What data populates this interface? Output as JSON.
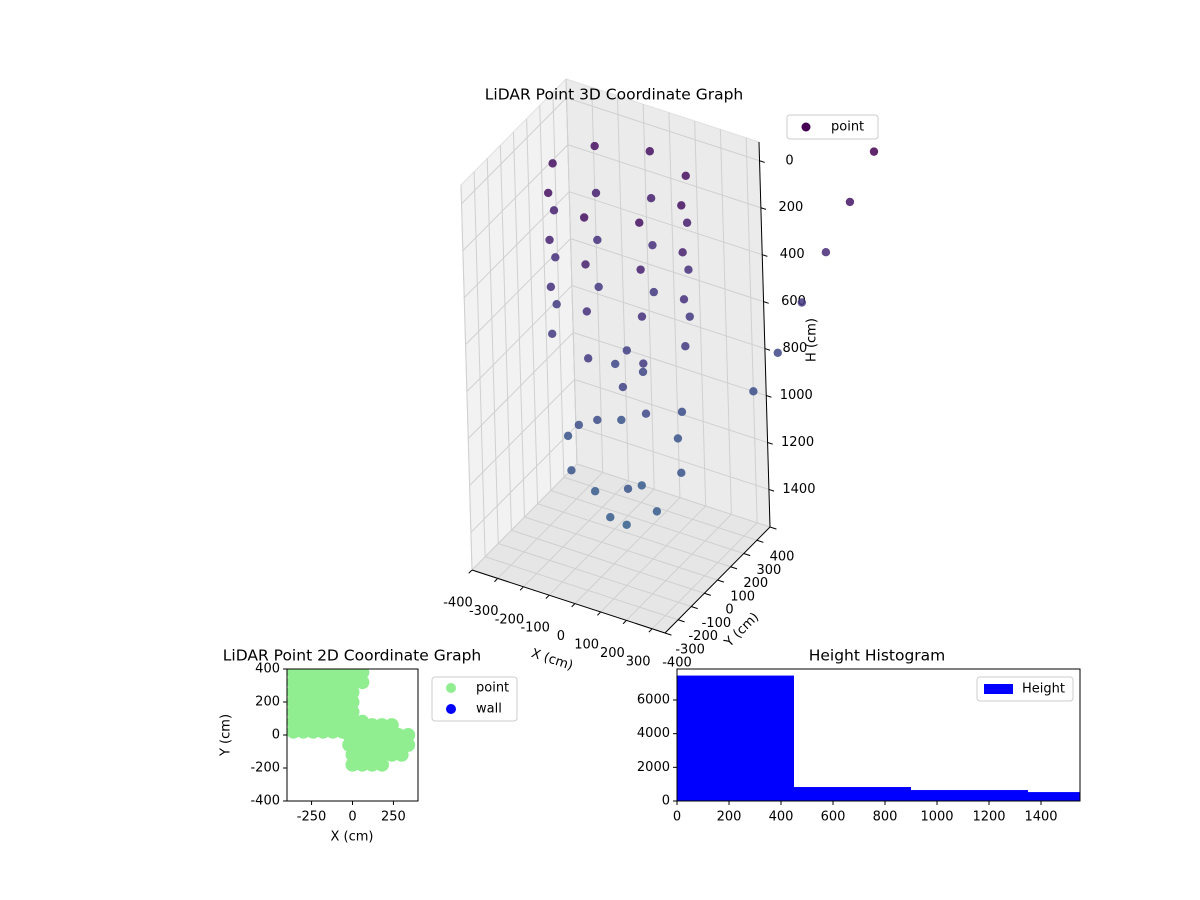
{
  "chart_data": [
    {
      "type": "scatter3d",
      "title": "LiDAR Point 3D Coordinate Graph",
      "xlabel": "X (cm)",
      "ylabel": "Y (cm)",
      "zlabel": "H (cm)",
      "xlim": [
        -400,
        350
      ],
      "ylim": [
        -400,
        400
      ],
      "zlim": [
        1560,
        -80
      ],
      "xticks": [
        -400,
        -300,
        -200,
        -100,
        0,
        100,
        200,
        300
      ],
      "yticks": [
        -400,
        -300,
        -200,
        -100,
        0,
        100,
        200,
        300,
        400
      ],
      "zticks": [
        0,
        200,
        400,
        600,
        800,
        1000,
        1200,
        1400
      ],
      "grid": true,
      "legend": "upper right",
      "series": [
        {
          "name": "point",
          "color": "#440154",
          "colormap": [
            "#440154",
            "#472d7b",
            "#3e4a89",
            "#35608d"
          ],
          "x": [
            250,
            177,
            0,
            -177,
            -250,
            -177,
            0,
            177,
            250,
            177,
            0,
            -177,
            -250,
            -177,
            0,
            177,
            250,
            177,
            0,
            -177,
            -250,
            -177,
            0,
            177,
            250,
            177,
            0,
            -177,
            -250,
            -177,
            0,
            177,
            220,
            110,
            -110,
            -220,
            -110,
            110,
            120,
            0,
            -120,
            0,
            0,
            60,
            -80,
            120,
            -40,
            150,
            -150,
            20,
            80,
            300,
            400,
            500,
            600,
            700,
            800
          ],
          "y": [
            0,
            177,
            250,
            177,
            0,
            -177,
            -250,
            -177,
            0,
            177,
            250,
            177,
            0,
            -177,
            -250,
            -177,
            0,
            177,
            250,
            177,
            0,
            -177,
            -250,
            -177,
            0,
            177,
            250,
            177,
            0,
            -177,
            -250,
            -177,
            0,
            190,
            190,
            0,
            -190,
            -190,
            0,
            120,
            0,
            -120,
            0,
            40,
            100,
            -60,
            -120,
            150,
            -50,
            0,
            -150,
            400,
            400,
            400,
            400,
            400,
            400
          ],
          "z": [
            0,
            0,
            0,
            0,
            0,
            0,
            0,
            0,
            200,
            200,
            200,
            200,
            200,
            200,
            200,
            200,
            400,
            400,
            400,
            400,
            400,
            400,
            400,
            400,
            600,
            600,
            600,
            600,
            600,
            600,
            600,
            600,
            1150,
            1150,
            1150,
            1150,
            1150,
            1150,
            1350,
            1350,
            1350,
            1350,
            1450,
            800,
            850,
            900,
            950,
            1000,
            1050,
            700,
            750,
            1000,
            800,
            550,
            300,
            50,
            -200
          ]
        }
      ]
    },
    {
      "type": "scatter",
      "title": "LiDAR Point 2D Coordinate Graph",
      "xlabel": "X (cm)",
      "ylabel": "Y (cm)",
      "xlim": [
        -400,
        400
      ],
      "ylim": [
        -400,
        400
      ],
      "xticks": [
        -250,
        0,
        250
      ],
      "yticks": [
        -400,
        -200,
        0,
        200,
        400
      ],
      "legend": "outside right",
      "series": [
        {
          "name": "point",
          "color": "#90ee90",
          "x": [
            -360,
            -300,
            -240,
            -180,
            -120,
            -60,
            0,
            60,
            -360,
            -300,
            -240,
            -180,
            -120,
            -60,
            0,
            60,
            -360,
            -300,
            -240,
            -180,
            -120,
            -60,
            0,
            -360,
            -300,
            -240,
            -180,
            -120,
            -60,
            0,
            -360,
            -300,
            -240,
            -180,
            -120,
            -60,
            0,
            -360,
            -300,
            -240,
            -180,
            -120,
            -60,
            0,
            60,
            -360,
            -300,
            -240,
            -180,
            -120,
            -60,
            0,
            60,
            0,
            60,
            120,
            180,
            240,
            -20,
            40,
            100,
            160,
            220,
            280,
            340,
            -20,
            40,
            100,
            160,
            220,
            280,
            340,
            0,
            60,
            120,
            180,
            240,
            300,
            0,
            60,
            120,
            180
          ],
          "y": [
            380,
            380,
            380,
            380,
            380,
            380,
            380,
            380,
            320,
            320,
            320,
            320,
            320,
            320,
            320,
            320,
            260,
            260,
            260,
            260,
            260,
            260,
            260,
            200,
            200,
            200,
            200,
            200,
            200,
            200,
            140,
            140,
            140,
            140,
            140,
            140,
            140,
            80,
            80,
            80,
            80,
            80,
            80,
            80,
            80,
            20,
            20,
            20,
            20,
            20,
            20,
            20,
            20,
            60,
            60,
            60,
            60,
            60,
            0,
            0,
            0,
            0,
            0,
            0,
            0,
            -60,
            -60,
            -60,
            -60,
            -60,
            -60,
            -60,
            -120,
            -120,
            -120,
            -120,
            -120,
            -120,
            -180,
            -180,
            -180,
            -180
          ]
        },
        {
          "name": "wall",
          "color": "#0000ff",
          "x": [],
          "y": []
        }
      ]
    },
    {
      "type": "histogram",
      "title": "Height Histogram",
      "xlim": [
        0,
        1550
      ],
      "ylim": [
        0,
        7840
      ],
      "xticks": [
        0,
        200,
        400,
        600,
        800,
        1000,
        1200,
        1400
      ],
      "yticks": [
        0,
        2000,
        4000,
        6000
      ],
      "legend": "upper right",
      "series": [
        {
          "name": "Height",
          "color": "#0000ff",
          "bins": [
            0,
            450,
            900,
            1350,
            1800
          ],
          "counts": [
            7450,
            830,
            650,
            530
          ]
        }
      ]
    }
  ]
}
